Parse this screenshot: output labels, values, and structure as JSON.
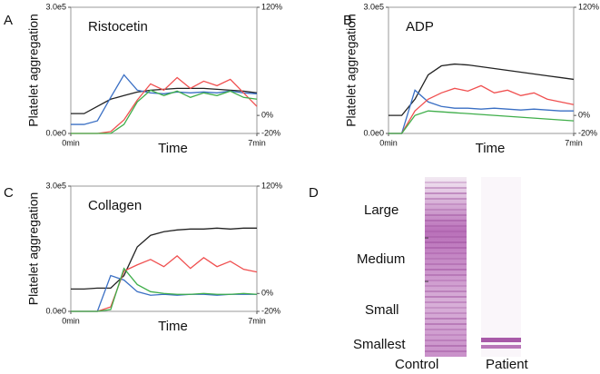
{
  "chart_data": [
    {
      "type": "line",
      "panel": "A",
      "title": "Ristocetin",
      "ylabel": "Platelet aggregation",
      "xlabel": "Time",
      "x": [
        0,
        0.5,
        1,
        1.5,
        2,
        2.5,
        3,
        3.5,
        4,
        4.5,
        5,
        5.5,
        6,
        6.5,
        7
      ],
      "xlim": [
        0,
        7
      ],
      "xticks": [
        {
          "value": 0,
          "label": "0min"
        },
        {
          "value": 7,
          "label": "7min"
        }
      ],
      "ylim": [
        0,
        300000
      ],
      "yticks": [
        {
          "value": 0,
          "label": "0.0e0"
        },
        {
          "value": 300000,
          "label": "3.0e5"
        }
      ],
      "y2lim": [
        -20,
        120
      ],
      "y2ticks": [
        {
          "value": 120,
          "label": "120%"
        },
        {
          "value": 0,
          "label": "0%"
        },
        {
          "value": -20,
          "label": "-20%"
        }
      ],
      "series": [
        {
          "color": "#222222",
          "axis": "y2",
          "values": [
            2,
            2,
            10,
            18,
            22,
            26,
            28,
            29,
            30,
            30,
            30,
            29,
            28,
            27,
            25
          ]
        },
        {
          "color": "#3a6fc4",
          "axis": "y2",
          "values": [
            -10,
            -10,
            -6,
            20,
            45,
            28,
            25,
            24,
            26,
            25,
            26,
            25,
            27,
            25,
            24
          ]
        },
        {
          "color": "#f05050",
          "axis": "y2",
          "values": [
            -20,
            -20,
            -20,
            -18,
            -5,
            17,
            35,
            28,
            42,
            30,
            38,
            33,
            40,
            25,
            10
          ]
        },
        {
          "color": "#3fae4a",
          "axis": "y2",
          "values": [
            -20,
            -20,
            -20,
            -20,
            -10,
            15,
            28,
            22,
            27,
            20,
            25,
            22,
            27,
            20,
            18
          ]
        }
      ]
    },
    {
      "type": "line",
      "panel": "B",
      "title": "ADP",
      "ylabel": "Platelet aggregation",
      "xlabel": "Time",
      "x": [
        0,
        0.5,
        1,
        1.5,
        2,
        2.5,
        3,
        3.5,
        4,
        4.5,
        5,
        5.5,
        6,
        6.5,
        7
      ],
      "xlim": [
        0,
        7
      ],
      "xticks": [
        {
          "value": 0,
          "label": "0min"
        },
        {
          "value": 7,
          "label": "7min"
        }
      ],
      "ylim": [
        0,
        300000
      ],
      "yticks": [
        {
          "value": 0,
          "label": "0.0e0"
        },
        {
          "value": 300000,
          "label": "3.0e5"
        }
      ],
      "y2lim": [
        -20,
        120
      ],
      "y2ticks": [
        {
          "value": 120,
          "label": "120%"
        },
        {
          "value": 0,
          "label": "0%"
        },
        {
          "value": -20,
          "label": "-20%"
        }
      ],
      "series": [
        {
          "color": "#222222",
          "axis": "y2",
          "values": [
            0,
            0,
            18,
            45,
            55,
            57,
            56,
            54,
            52,
            50,
            48,
            46,
            44,
            42,
            40
          ]
        },
        {
          "color": "#3a6fc4",
          "axis": "y2",
          "values": [
            -20,
            -20,
            28,
            15,
            10,
            8,
            8,
            7,
            8,
            7,
            6,
            7,
            6,
            5,
            5
          ]
        },
        {
          "color": "#f05050",
          "axis": "y2",
          "values": [
            -20,
            -20,
            5,
            18,
            25,
            30,
            27,
            33,
            25,
            28,
            22,
            25,
            18,
            15,
            12
          ]
        },
        {
          "color": "#3fae4a",
          "axis": "y2",
          "values": [
            -20,
            -20,
            0,
            5,
            4,
            3,
            2,
            1,
            0,
            -1,
            -2,
            -3,
            -4,
            -5,
            -6
          ]
        }
      ]
    },
    {
      "type": "line",
      "panel": "C",
      "title": "Collagen",
      "ylabel": "Platelet aggregation",
      "xlabel": "Time",
      "x": [
        0,
        0.5,
        1,
        1.5,
        2,
        2.5,
        3,
        3.5,
        4,
        4.5,
        5,
        5.5,
        6,
        6.5,
        7
      ],
      "xlim": [
        0,
        7
      ],
      "xticks": [
        {
          "value": 0,
          "label": "0min"
        },
        {
          "value": 7,
          "label": "7min"
        }
      ],
      "ylim": [
        0,
        300000
      ],
      "yticks": [
        {
          "value": 0,
          "label": "0.0e0"
        },
        {
          "value": 300000,
          "label": "3.0e5"
        }
      ],
      "y2lim": [
        -20,
        120
      ],
      "y2ticks": [
        {
          "value": 120,
          "label": "120%"
        },
        {
          "value": 0,
          "label": "0%"
        },
        {
          "value": -20,
          "label": "-20%"
        }
      ],
      "series": [
        {
          "color": "#222222",
          "axis": "y2",
          "values": [
            5,
            5,
            6,
            6,
            20,
            52,
            65,
            69,
            71,
            72,
            72,
            73,
            72,
            73,
            73
          ]
        },
        {
          "color": "#3a6fc4",
          "axis": "y2",
          "values": [
            -20,
            -20,
            -20,
            20,
            15,
            2,
            -2,
            -1,
            -2,
            -1,
            -1,
            -2,
            -1,
            -1,
            -1
          ]
        },
        {
          "color": "#f05050",
          "axis": "y2",
          "values": [
            -20,
            -20,
            -20,
            -15,
            25,
            32,
            38,
            30,
            42,
            28,
            40,
            30,
            36,
            27,
            24
          ]
        },
        {
          "color": "#3fae4a",
          "axis": "y2",
          "values": [
            -20,
            -20,
            -20,
            -18,
            28,
            10,
            2,
            0,
            -1,
            -1,
            0,
            -1,
            -1,
            0,
            -1
          ]
        }
      ]
    }
  ],
  "panel_d": {
    "label": "D",
    "size_labels": [
      "Large",
      "Medium",
      "Small",
      "Smallest"
    ],
    "lane_labels": [
      "Control",
      "Patient"
    ]
  }
}
